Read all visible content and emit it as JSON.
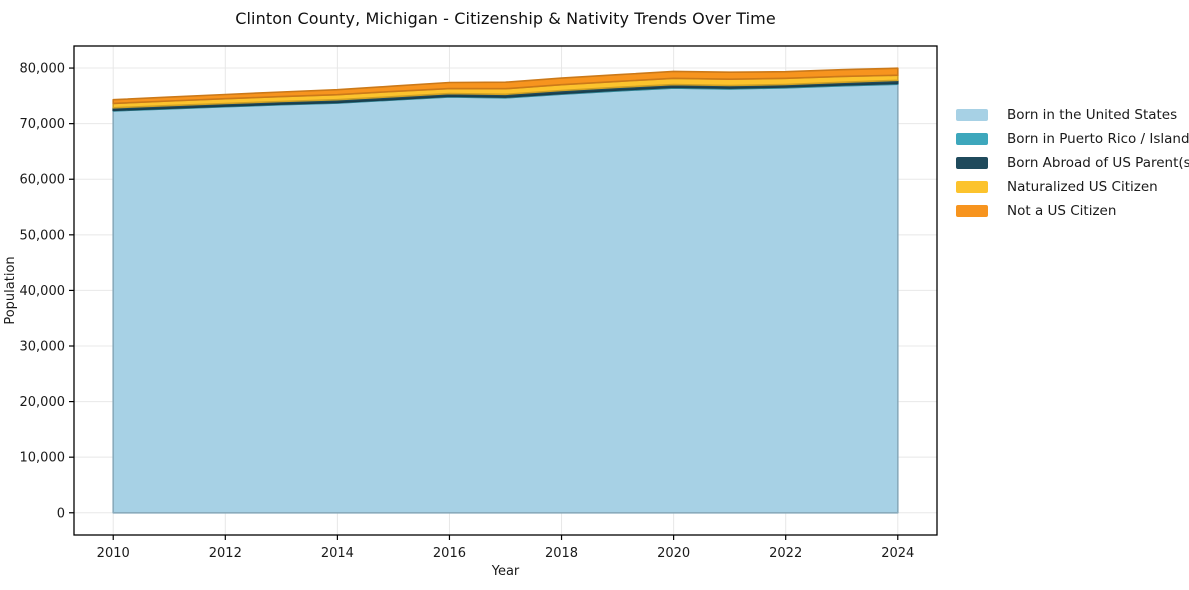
{
  "chart_data": {
    "type": "area",
    "stacked": true,
    "title": "Clinton County, Michigan - Citizenship & Nativity Trends Over Time",
    "xlabel": "Year",
    "ylabel": "Population",
    "x": [
      2010,
      2011,
      2012,
      2013,
      2014,
      2015,
      2016,
      2017,
      2018,
      2019,
      2020,
      2021,
      2022,
      2023,
      2024
    ],
    "series": [
      {
        "name": "Born in the United States",
        "color": "#a7d1e5",
        "values": [
          72300,
          72680,
          73050,
          73400,
          73700,
          74250,
          74800,
          74650,
          75300,
          75900,
          76400,
          76250,
          76450,
          76800,
          77100
        ]
      },
      {
        "name": "Born in Puerto Rico / Islands",
        "color": "#3da7bc",
        "values": [
          100,
          100,
          110,
          110,
          120,
          120,
          130,
          130,
          140,
          140,
          150,
          150,
          140,
          150,
          160
        ]
      },
      {
        "name": "Born Abroad of US Parent(s)",
        "color": "#1f4a5c",
        "values": [
          450,
          460,
          470,
          480,
          490,
          480,
          470,
          500,
          520,
          500,
          480,
          470,
          460,
          480,
          540
        ]
      },
      {
        "name": "Naturalized US Citizen",
        "color": "#fcc32d",
        "values": [
          800,
          830,
          850,
          880,
          900,
          950,
          900,
          1000,
          1050,
          1060,
          1120,
          1130,
          1100,
          1070,
          920
        ]
      },
      {
        "name": "Not a US Citizen",
        "color": "#f7941e",
        "values": [
          650,
          710,
          770,
          830,
          890,
          950,
          1100,
          1170,
          1190,
          1200,
          1250,
          1250,
          1200,
          1200,
          1250
        ]
      }
    ],
    "xticks": [
      2010,
      2012,
      2014,
      2016,
      2018,
      2020,
      2022,
      2024
    ],
    "yticks": [
      0,
      10000,
      20000,
      30000,
      40000,
      50000,
      60000,
      70000,
      80000
    ],
    "ylim": [
      0,
      80000
    ],
    "grid": true,
    "legend_position": "right-outside"
  },
  "style": {
    "grid_color": "#e8e8e8",
    "spine_color": "#000000",
    "text_color": "#1a1a1a",
    "background": "#ffffff"
  }
}
